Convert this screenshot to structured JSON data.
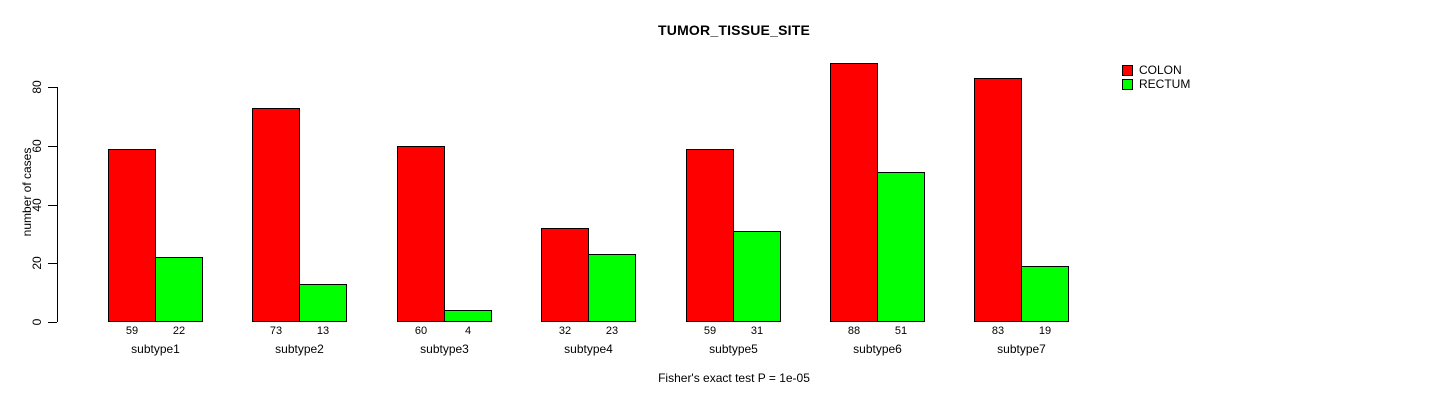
{
  "chart_data": {
    "type": "bar",
    "title": "TUMOR_TISSUE_SITE",
    "ylabel": "number of cases",
    "xlabel": "",
    "annotation": "Fisher's exact test P = 1e-05",
    "categories": [
      "subtype1",
      "subtype2",
      "subtype3",
      "subtype4",
      "subtype5",
      "subtype6",
      "subtype7"
    ],
    "series": [
      {
        "name": "COLON",
        "color": "#ff0000",
        "values": [
          59,
          73,
          60,
          32,
          59,
          88,
          83
        ]
      },
      {
        "name": "RECTUM",
        "color": "#00ff00",
        "values": [
          22,
          13,
          4,
          23,
          31,
          51,
          19
        ]
      }
    ],
    "ylim": [
      0,
      80
    ],
    "yticks": [
      0,
      20,
      40,
      60,
      80
    ],
    "grid": false,
    "legend_position": "top-right",
    "bar_value_labels_shown": true,
    "background_color": "#ffffff",
    "text_color": "#000000"
  }
}
